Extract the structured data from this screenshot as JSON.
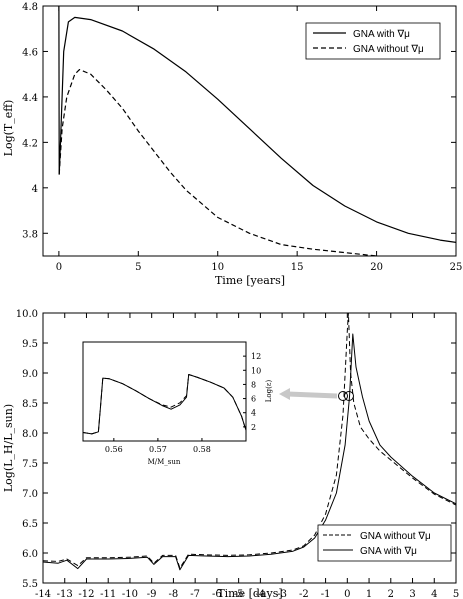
{
  "chart_data": [
    {
      "type": "line",
      "xlabel": "Time [years]",
      "ylabel": "Log(T_eff)",
      "xlim": [
        -1,
        25
      ],
      "ylim": [
        3.7,
        4.8
      ],
      "xticks": [
        0,
        5,
        10,
        15,
        20,
        25
      ],
      "yticks": [
        3.8,
        4,
        4.2,
        4.4,
        4.6,
        4.8
      ],
      "legend_position": "top-right",
      "series": [
        {
          "name": "GNA with ∇μ",
          "style": "solid",
          "points": [
            [
              0,
              4.8
            ],
            [
              0.02,
              4.06
            ],
            [
              0.1,
              4.2
            ],
            [
              0.3,
              4.6
            ],
            [
              0.6,
              4.73
            ],
            [
              1,
              4.75
            ],
            [
              2,
              4.74
            ],
            [
              4,
              4.69
            ],
            [
              6,
              4.61
            ],
            [
              8,
              4.51
            ],
            [
              10,
              4.39
            ],
            [
              12,
              4.26
            ],
            [
              14,
              4.13
            ],
            [
              16,
              4.01
            ],
            [
              18,
              3.92
            ],
            [
              20,
              3.85
            ],
            [
              22,
              3.8
            ],
            [
              24,
              3.77
            ],
            [
              25,
              3.76
            ]
          ]
        },
        {
          "name": "GNA without ∇μ",
          "style": "dashed",
          "points": [
            [
              0.02,
              4.06
            ],
            [
              0.2,
              4.26
            ],
            [
              0.5,
              4.4
            ],
            [
              1,
              4.5
            ],
            [
              1.3,
              4.52
            ],
            [
              2,
              4.5
            ],
            [
              3,
              4.43
            ],
            [
              4,
              4.35
            ],
            [
              5,
              4.25
            ],
            [
              6,
              4.16
            ],
            [
              7,
              4.07
            ],
            [
              8,
              3.99
            ],
            [
              9,
              3.93
            ],
            [
              10,
              3.87
            ],
            [
              12,
              3.8
            ],
            [
              14,
              3.75
            ],
            [
              16,
              3.73
            ],
            [
              18,
              3.715
            ],
            [
              20,
              3.7
            ]
          ]
        }
      ]
    },
    {
      "type": "line",
      "xlabel": "Time [days]",
      "ylabel": "Log(L_H/L_sun)",
      "xlim": [
        -14,
        5
      ],
      "ylim": [
        5.5,
        10
      ],
      "xticks": [
        -14,
        -13,
        -12,
        -11,
        -10,
        -9,
        -8,
        -7,
        -6,
        -5,
        -4,
        -3,
        -2,
        -1,
        0,
        1,
        2,
        3,
        4,
        5
      ],
      "yticks": [
        5.5,
        6,
        6.5,
        7,
        7.5,
        8,
        8.5,
        9,
        9.5,
        10
      ],
      "legend_position": "bottom-right",
      "series": [
        {
          "name": "GNA without ∇μ",
          "style": "dashed",
          "points": [
            [
              -14,
              5.87
            ],
            [
              -13.3,
              5.86
            ],
            [
              -12.9,
              5.9
            ],
            [
              -12.4,
              5.79
            ],
            [
              -12,
              5.92
            ],
            [
              -11,
              5.92
            ],
            [
              -10,
              5.93
            ],
            [
              -9.2,
              5.95
            ],
            [
              -8.9,
              5.83
            ],
            [
              -8.5,
              5.96
            ],
            [
              -7.9,
              5.96
            ],
            [
              -7.7,
              5.75
            ],
            [
              -7.3,
              5.98
            ],
            [
              -6.5,
              5.97
            ],
            [
              -5.5,
              5.96
            ],
            [
              -4.5,
              5.97
            ],
            [
              -3.5,
              6.0
            ],
            [
              -2.5,
              6.05
            ],
            [
              -2,
              6.12
            ],
            [
              -1.5,
              6.3
            ],
            [
              -1,
              6.65
            ],
            [
              -0.5,
              7.3
            ],
            [
              -0.2,
              8.3
            ],
            [
              0,
              9.7
            ],
            [
              0.05,
              10
            ],
            [
              0.15,
              9.0
            ],
            [
              0.3,
              8.5
            ],
            [
              0.6,
              8.1
            ],
            [
              1,
              7.9
            ],
            [
              1.5,
              7.7
            ],
            [
              2,
              7.55
            ],
            [
              3,
              7.25
            ],
            [
              4,
              6.98
            ],
            [
              5,
              6.8
            ]
          ]
        },
        {
          "name": "GNA with ∇μ",
          "style": "solid",
          "points": [
            [
              -14,
              5.85
            ],
            [
              -13.3,
              5.83
            ],
            [
              -12.9,
              5.88
            ],
            [
              -12.4,
              5.74
            ],
            [
              -12,
              5.9
            ],
            [
              -11,
              5.9
            ],
            [
              -10,
              5.91
            ],
            [
              -9.2,
              5.93
            ],
            [
              -8.9,
              5.81
            ],
            [
              -8.5,
              5.94
            ],
            [
              -7.9,
              5.94
            ],
            [
              -7.7,
              5.72
            ],
            [
              -7.3,
              5.96
            ],
            [
              -6.5,
              5.95
            ],
            [
              -5.5,
              5.94
            ],
            [
              -4.5,
              5.95
            ],
            [
              -3.5,
              5.98
            ],
            [
              -2.5,
              6.03
            ],
            [
              -2,
              6.1
            ],
            [
              -1.5,
              6.25
            ],
            [
              -1,
              6.55
            ],
            [
              -0.5,
              7.0
            ],
            [
              -0.1,
              7.8
            ],
            [
              0.1,
              8.6
            ],
            [
              0.25,
              9.65
            ],
            [
              0.4,
              9.1
            ],
            [
              0.7,
              8.6
            ],
            [
              1,
              8.2
            ],
            [
              1.5,
              7.8
            ],
            [
              2,
              7.6
            ],
            [
              3,
              7.28
            ],
            [
              4,
              7.0
            ],
            [
              5,
              6.82
            ]
          ]
        }
      ],
      "inset": {
        "xlabel": "M/M_sun",
        "ylabel": "Log(ε)",
        "xlim": [
          0.553,
          0.59
        ],
        "ylim": [
          0,
          14
        ],
        "xticks": [
          0.56,
          0.57,
          0.58
        ],
        "yticks": [
          2,
          4,
          6,
          8,
          10,
          12
        ],
        "series": [
          {
            "name": "GNA with ∇μ",
            "style": "solid",
            "points": [
              [
                0.553,
                1.2
              ],
              [
                0.555,
                1.0
              ],
              [
                0.5565,
                1.3
              ],
              [
                0.557,
                5
              ],
              [
                0.5575,
                8.9
              ],
              [
                0.559,
                8.8
              ],
              [
                0.562,
                8.1
              ],
              [
                0.565,
                7.1
              ],
              [
                0.568,
                6.0
              ],
              [
                0.571,
                5.0
              ],
              [
                0.573,
                4.5
              ],
              [
                0.575,
                5.1
              ],
              [
                0.5765,
                6.2
              ],
              [
                0.577,
                9.4
              ],
              [
                0.579,
                9.0
              ],
              [
                0.582,
                8.3
              ],
              [
                0.585,
                7.5
              ],
              [
                0.587,
                6.2
              ],
              [
                0.589,
                3.5
              ],
              [
                0.59,
                1.5
              ]
            ]
          },
          {
            "name": "GNA without ∇μ",
            "style": "dashed",
            "points": [
              [
                0.553,
                1.2
              ],
              [
                0.555,
                1.0
              ],
              [
                0.5565,
                1.3
              ],
              [
                0.557,
                5
              ],
              [
                0.5575,
                8.9
              ],
              [
                0.559,
                8.8
              ],
              [
                0.562,
                8.1
              ],
              [
                0.565,
                7.1
              ],
              [
                0.568,
                6.0
              ],
              [
                0.571,
                5.1
              ],
              [
                0.573,
                4.8
              ],
              [
                0.575,
                5.4
              ],
              [
                0.5765,
                6.4
              ],
              [
                0.577,
                9.4
              ],
              [
                0.579,
                9.0
              ],
              [
                0.582,
                8.3
              ],
              [
                0.585,
                7.5
              ],
              [
                0.587,
                6.2
              ],
              [
                0.589,
                3.5
              ],
              [
                0.59,
                1.5
              ]
            ]
          }
        ]
      }
    }
  ]
}
